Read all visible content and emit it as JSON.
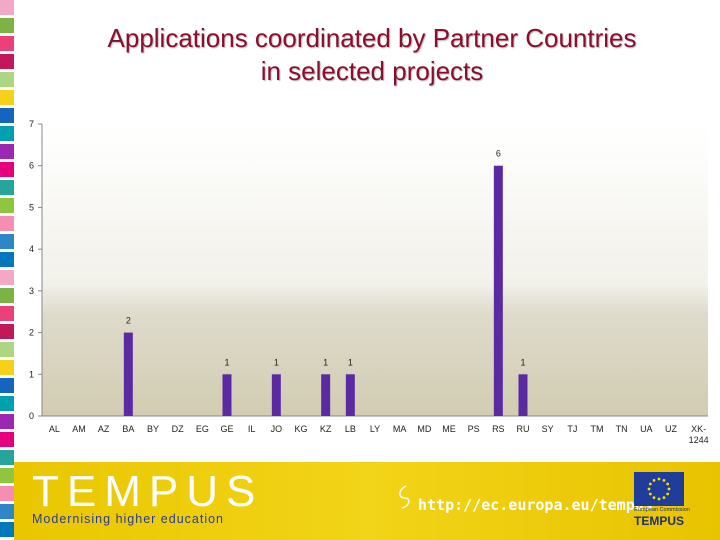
{
  "title_line1": "Applications coordinated by Partner Countries",
  "title_line2": "in selected projects",
  "chart_data": {
    "type": "bar",
    "title": "Applications coordinated by Partner Countries in selected projects",
    "xlabel": "",
    "ylabel": "",
    "ylim": [
      0,
      7
    ],
    "yticks": [
      0,
      1,
      2,
      3,
      4,
      5,
      6,
      7
    ],
    "grid": false,
    "legend": "none",
    "categories": [
      "AL",
      "AM",
      "AZ",
      "BA",
      "BY",
      "DZ",
      "EG",
      "GE",
      "IL",
      "JO",
      "KG",
      "KZ",
      "LB",
      "LY",
      "MA",
      "MD",
      "ME",
      "PS",
      "RS",
      "RU",
      "SY",
      "TJ",
      "TM",
      "TN",
      "UA",
      "UZ",
      "XK-1244"
    ],
    "category_lines": [
      [
        "AL"
      ],
      [
        "AM"
      ],
      [
        "AZ"
      ],
      [
        "BA"
      ],
      [
        "BY"
      ],
      [
        "DZ"
      ],
      [
        "EG"
      ],
      [
        "GE"
      ],
      [
        "IL"
      ],
      [
        "JO"
      ],
      [
        "KG"
      ],
      [
        "KZ"
      ],
      [
        "LB"
      ],
      [
        "LY"
      ],
      [
        "MA"
      ],
      [
        "MD"
      ],
      [
        "ME"
      ],
      [
        "PS"
      ],
      [
        "RS"
      ],
      [
        "RU"
      ],
      [
        "SY"
      ],
      [
        "TJ"
      ],
      [
        "TM"
      ],
      [
        "TN"
      ],
      [
        "UA"
      ],
      [
        "UZ"
      ],
      [
        "XK-",
        "1244"
      ]
    ],
    "values": [
      0,
      0,
      0,
      2,
      0,
      0,
      0,
      1,
      0,
      1,
      0,
      1,
      1,
      0,
      0,
      0,
      0,
      0,
      6,
      1,
      0,
      0,
      0,
      0,
      0,
      0,
      0
    ],
    "data_labels": [
      "",
      "",
      "",
      "2",
      "",
      "",
      "",
      "1",
      "",
      "1",
      "",
      "1",
      "1",
      "",
      "",
      "",
      "",
      "",
      "6",
      "1",
      "",
      "",
      "",
      "",
      "",
      "",
      ""
    ],
    "bar_color": "#5b2aa3"
  },
  "footer": {
    "logo_text": "TEMPUS",
    "tagline": "Modernising higher education",
    "url": "http://ec.europa.eu/tempus",
    "eu_label": "European Commission",
    "eu_tempus": "TEMPUS"
  },
  "colors": {
    "title": "#8a0f2e",
    "footer_bg": "#f0d010",
    "strip": [
      "#f3a8c8",
      "#2e86c8",
      "#8fc63e",
      "#e6007e",
      "#00a0b0",
      "#f7d117",
      "#c2185b",
      "#7cb342",
      "#0277bd",
      "#f48fb1",
      "#26a69a",
      "#9c27b0",
      "#1565c0",
      "#aed581",
      "#ec407a"
    ]
  }
}
